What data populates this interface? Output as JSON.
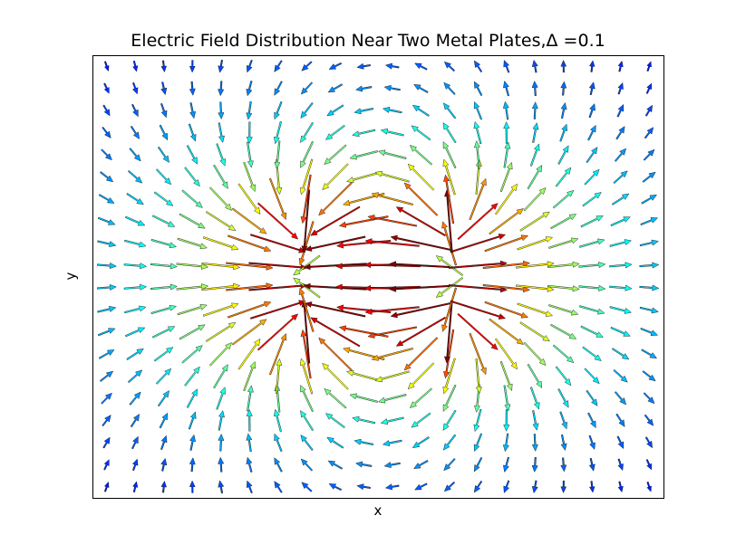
{
  "chart_data": {
    "type": "quiver",
    "title": "Electric Field Distribution Near Two Metal Plates,Δ =0.1",
    "xlabel": "x",
    "ylabel": "y",
    "x_ticks": [],
    "y_ticks": [],
    "grid": false,
    "legend": "none",
    "colormap": "jet",
    "field": {
      "description_of_sources": "two plates",
      "plates": [
        {
          "x": -0.5,
          "y_min": -0.5,
          "y_max": 0.5,
          "charge": -1
        },
        {
          "x": 0.5,
          "y_min": -0.5,
          "y_max": 0.5,
          "charge": 1
        }
      ],
      "delta": 0.1,
      "x_range": [
        -2.0,
        2.0
      ],
      "y_range": [
        -2.0,
        2.0
      ],
      "grid_cols": 20,
      "grid_rows": 20
    },
    "colors": {
      "low": "#00008f",
      "mid": "#7fff7f",
      "high": "#7f0000"
    }
  }
}
